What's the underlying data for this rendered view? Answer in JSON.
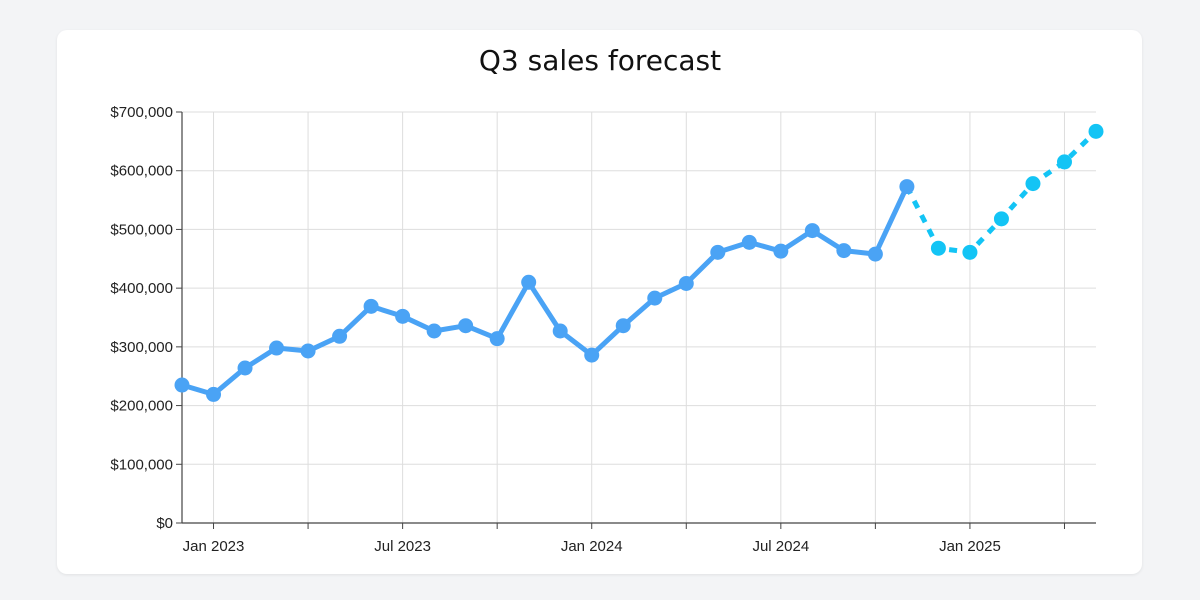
{
  "chart_data": {
    "type": "line",
    "title": "Q3 sales forecast",
    "xlabel": "",
    "ylabel": "",
    "y_ticks": [
      "$0",
      "$100,000",
      "$200,000",
      "$300,000",
      "$400,000",
      "$500,000",
      "$600,000",
      "$700,000"
    ],
    "x_ticks": [
      "Jan 2023",
      "Jul 2023",
      "Jan 2024",
      "Jul 2024",
      "Jan 2025"
    ],
    "ylim": [
      0,
      700000
    ],
    "xlim": [
      "2022-12",
      "2025-05"
    ],
    "grid": true,
    "legend": "none",
    "series": [
      {
        "style": "solid",
        "color": "#4aa3f5",
        "points": [
          {
            "x": "2022-12",
            "y": 235000
          },
          {
            "x": "2023-01",
            "y": 219000
          },
          {
            "x": "2023-02",
            "y": 264000
          },
          {
            "x": "2023-03",
            "y": 298000
          },
          {
            "x": "2023-04",
            "y": 293000
          },
          {
            "x": "2023-05",
            "y": 318000
          },
          {
            "x": "2023-06",
            "y": 369000
          },
          {
            "x": "2023-07",
            "y": 352000
          },
          {
            "x": "2023-08",
            "y": 327000
          },
          {
            "x": "2023-09",
            "y": 336000
          },
          {
            "x": "2023-10",
            "y": 314000
          },
          {
            "x": "2023-11",
            "y": 410000
          },
          {
            "x": "2023-12",
            "y": 327000
          },
          {
            "x": "2024-01",
            "y": 286000
          },
          {
            "x": "2024-02",
            "y": 336000
          },
          {
            "x": "2024-03",
            "y": 383000
          },
          {
            "x": "2024-04",
            "y": 408000
          },
          {
            "x": "2024-05",
            "y": 461000
          },
          {
            "x": "2024-06",
            "y": 478000
          },
          {
            "x": "2024-07",
            "y": 463000
          },
          {
            "x": "2024-08",
            "y": 498000
          },
          {
            "x": "2024-09",
            "y": 464000
          },
          {
            "x": "2024-10",
            "y": 458000
          },
          {
            "x": "2024-11",
            "y": 573000
          }
        ]
      },
      {
        "style": "dashed",
        "color": "#13c4f5",
        "points": [
          {
            "x": "2024-12",
            "y": 468000
          },
          {
            "x": "2025-01",
            "y": 461000
          },
          {
            "x": "2025-02",
            "y": 518000
          },
          {
            "x": "2025-03",
            "y": 578000
          },
          {
            "x": "2025-04",
            "y": 615000
          },
          {
            "x": "2025-05",
            "y": 667000
          }
        ]
      }
    ]
  }
}
